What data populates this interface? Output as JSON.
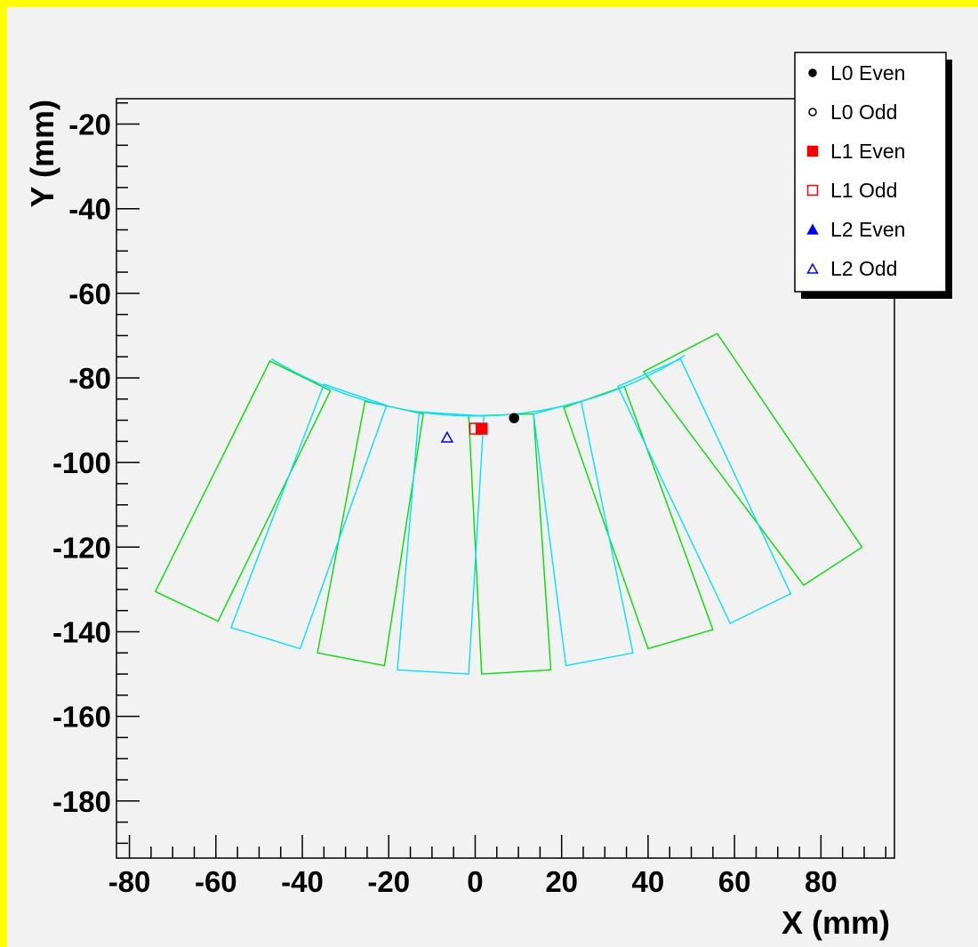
{
  "chart_data": {
    "type": "scatter",
    "xlabel": "X (mm)",
    "ylabel": "Y (mm)",
    "xlim": [
      -83,
      97
    ],
    "ylim": [
      -193.5,
      -14
    ],
    "x_ticks": [
      -80,
      -60,
      -40,
      -20,
      0,
      20,
      40,
      60,
      80
    ],
    "y_ticks": [
      -20,
      -40,
      -60,
      -80,
      -100,
      -120,
      -140,
      -160,
      -180
    ],
    "grid": false,
    "legend_position": "top-right",
    "series": [
      {
        "name": "L0 Even",
        "marker": "filled-circle",
        "color": "#000000",
        "points": [
          [
            9,
            -89.5
          ]
        ]
      },
      {
        "name": "L0 Odd",
        "marker": "open-circle",
        "color": "#000000",
        "points": []
      },
      {
        "name": "L1 Even",
        "marker": "filled-square",
        "color": "#ff0000",
        "points": [
          [
            1.5,
            -92
          ]
        ]
      },
      {
        "name": "L1 Odd",
        "marker": "open-square",
        "color": "#ff0000",
        "points": [
          [
            0,
            -92
          ]
        ]
      },
      {
        "name": "L2 Even",
        "marker": "filled-triangle",
        "color": "#0000ff",
        "points": []
      },
      {
        "name": "L2 Odd",
        "marker": "open-triangle",
        "color": "#0000ff",
        "points": [
          [
            -6.5,
            -94
          ]
        ]
      }
    ],
    "modules": {
      "green": [
        [
          [
            -74,
            -130.5
          ],
          [
            -47.5,
            -76
          ],
          [
            -33.5,
            -83
          ],
          [
            -59.5,
            -137.5
          ]
        ],
        [
          [
            -36.5,
            -145
          ],
          [
            -25.5,
            -85.5
          ],
          [
            -12,
            -88.5
          ],
          [
            -21,
            -148
          ]
        ],
        [
          [
            -1.5,
            -89
          ],
          [
            13.5,
            -88.5
          ],
          [
            17.5,
            -149
          ],
          [
            1.5,
            -150
          ]
        ],
        [
          [
            20.5,
            -87
          ],
          [
            34.5,
            -82
          ],
          [
            55,
            -139.5
          ],
          [
            40,
            -144
          ]
        ],
        [
          [
            39,
            -78.5
          ],
          [
            56,
            -69.5
          ],
          [
            89.5,
            -120
          ],
          [
            76,
            -129
          ]
        ]
      ],
      "cyan": [
        [
          [
            -56.5,
            -139
          ],
          [
            -35,
            -81.5
          ],
          [
            -20.5,
            -86.5
          ],
          [
            -40.5,
            -144
          ]
        ],
        [
          [
            -18,
            -149
          ],
          [
            -13,
            -88
          ],
          [
            2,
            -89
          ],
          [
            -1.5,
            -150
          ]
        ],
        [
          [
            13.5,
            -88.5
          ],
          [
            24.5,
            -85.5
          ],
          [
            36.5,
            -145
          ],
          [
            21,
            -148
          ]
        ],
        [
          [
            33,
            -82
          ],
          [
            47.5,
            -75.5
          ],
          [
            73,
            -131
          ],
          [
            59,
            -138
          ]
        ]
      ],
      "arc": {
        "cx": 0,
        "cy": 0,
        "r": 89,
        "from_deg": 238,
        "to_deg": 303
      }
    }
  },
  "legend": {
    "items": [
      "L0 Even",
      "L0 Odd",
      "L1 Even",
      "L1 Odd",
      "L2 Even",
      "L2 Odd"
    ]
  }
}
